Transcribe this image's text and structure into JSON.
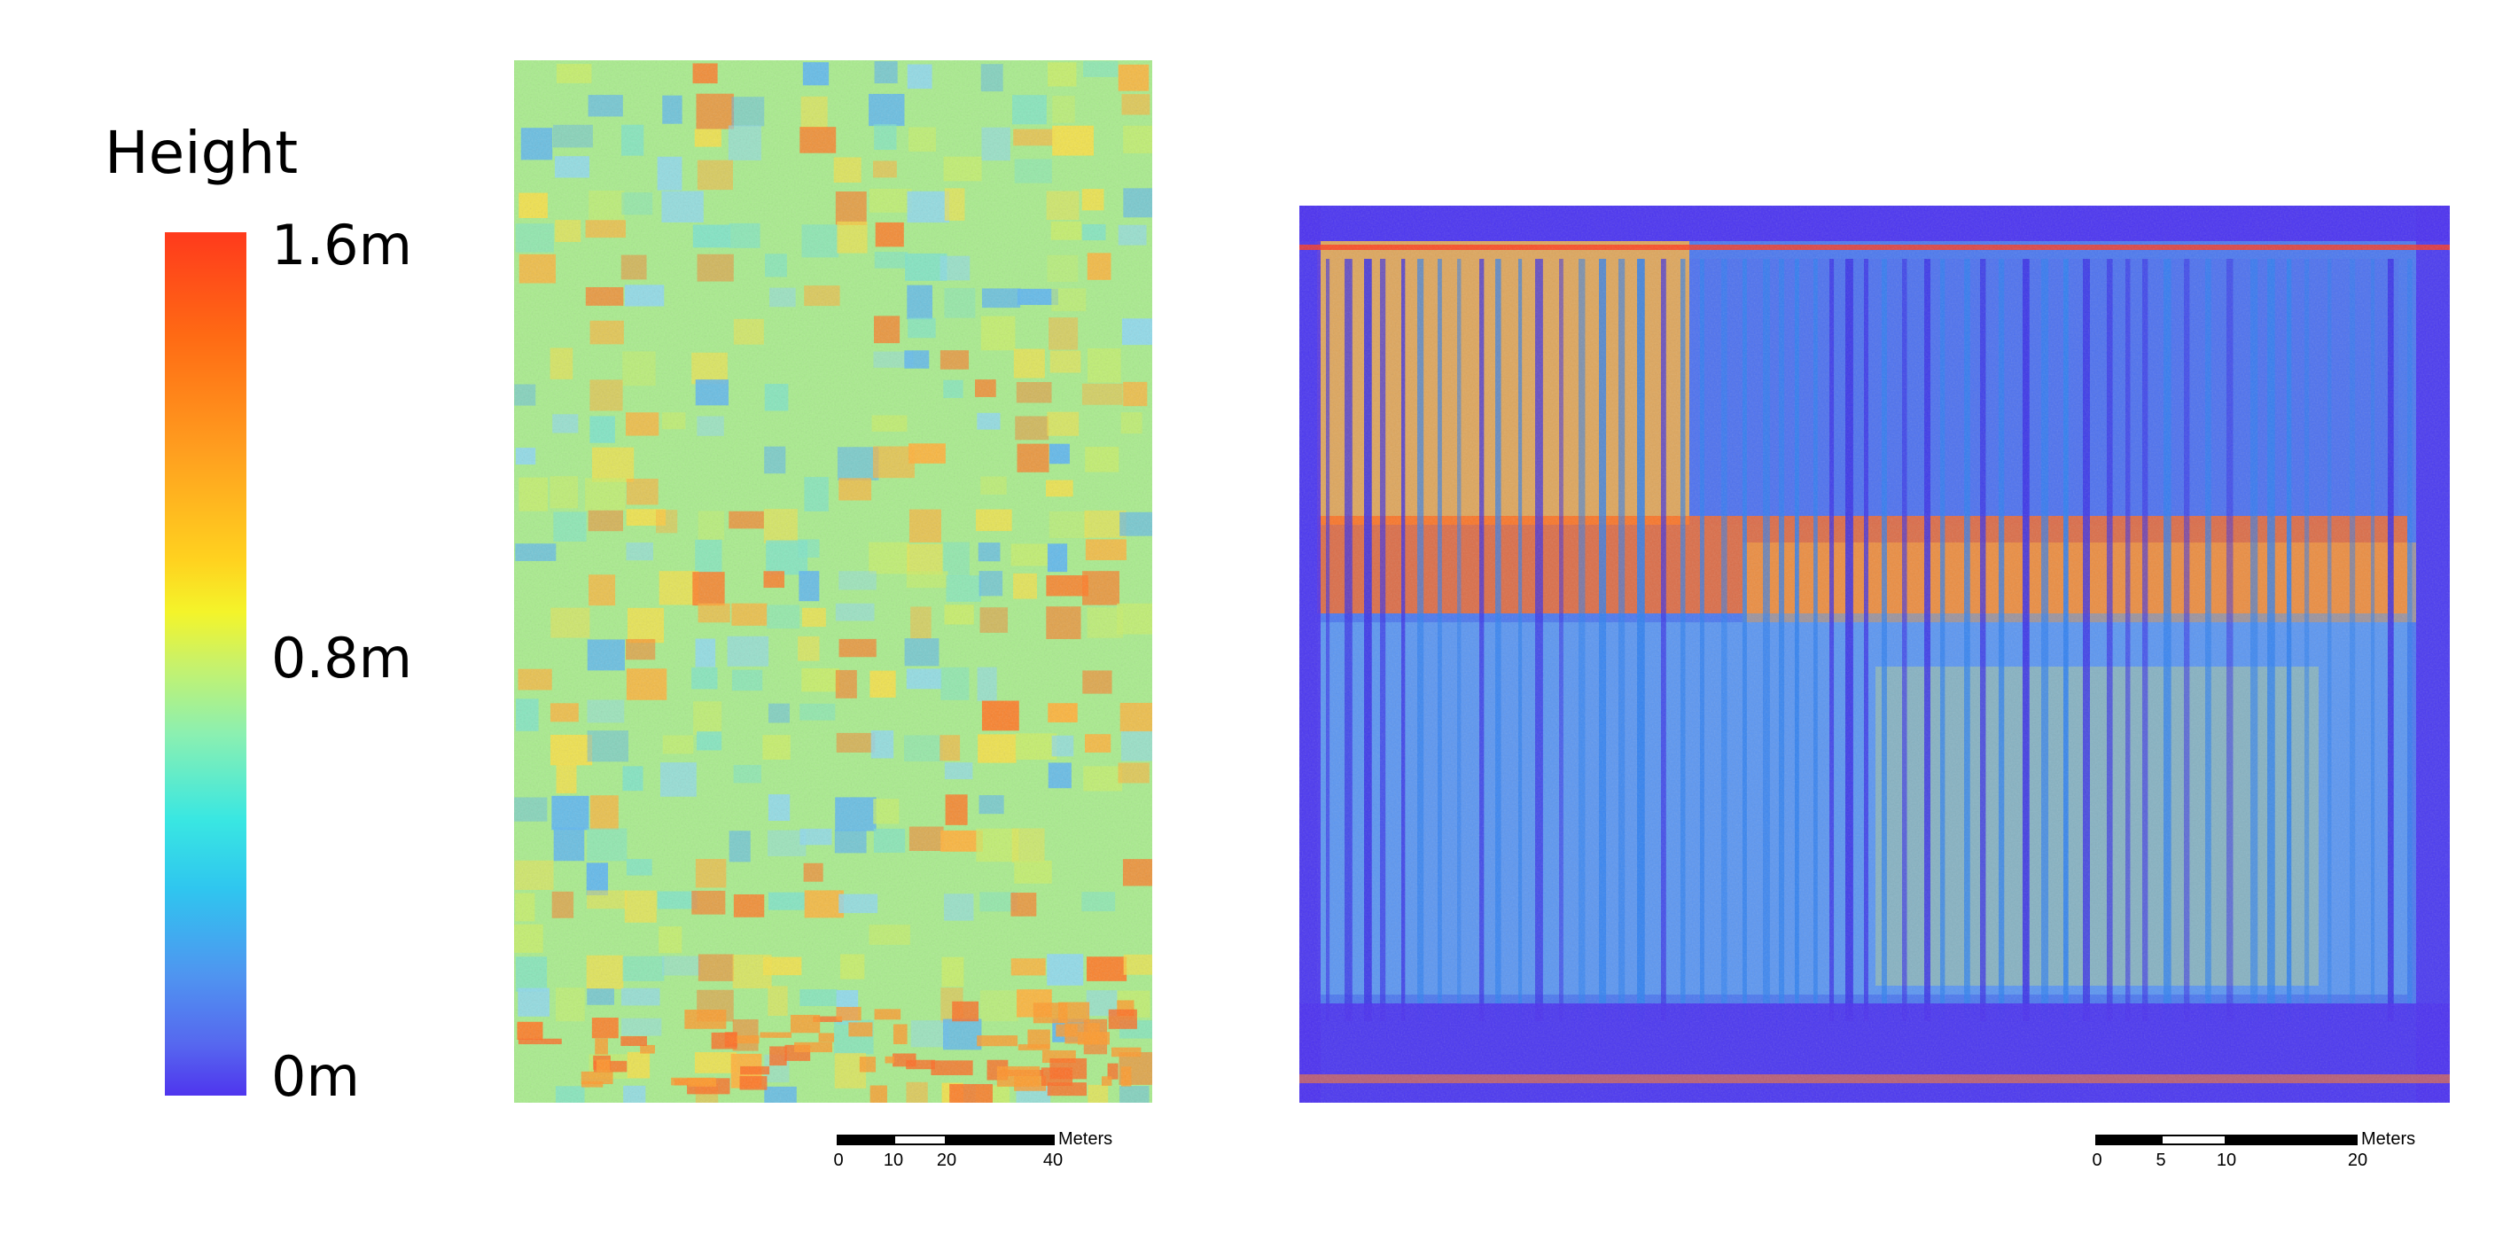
{
  "legend": {
    "title": "Height",
    "max_label": "1.6m",
    "mid_label": "0.8m",
    "min_label": "0m",
    "colors": [
      "#ff3a1c",
      "#ff9d1f",
      "#f4f42a",
      "#8cf0b0",
      "#39e7e2",
      "#4f95f0",
      "#4f35ee"
    ]
  },
  "maps": [
    {
      "name": "left-height-map",
      "dominant_tone": "green-yellow with orange and blue patches"
    },
    {
      "name": "right-height-map",
      "dominant_tone": "blue-violet with orange bands"
    }
  ],
  "scale_bars": [
    {
      "unit": "Meters",
      "ticks": [
        "0",
        "10",
        "20",
        "40"
      ]
    },
    {
      "unit": "Meters",
      "ticks": [
        "0",
        "5",
        "10",
        "20"
      ]
    }
  ]
}
